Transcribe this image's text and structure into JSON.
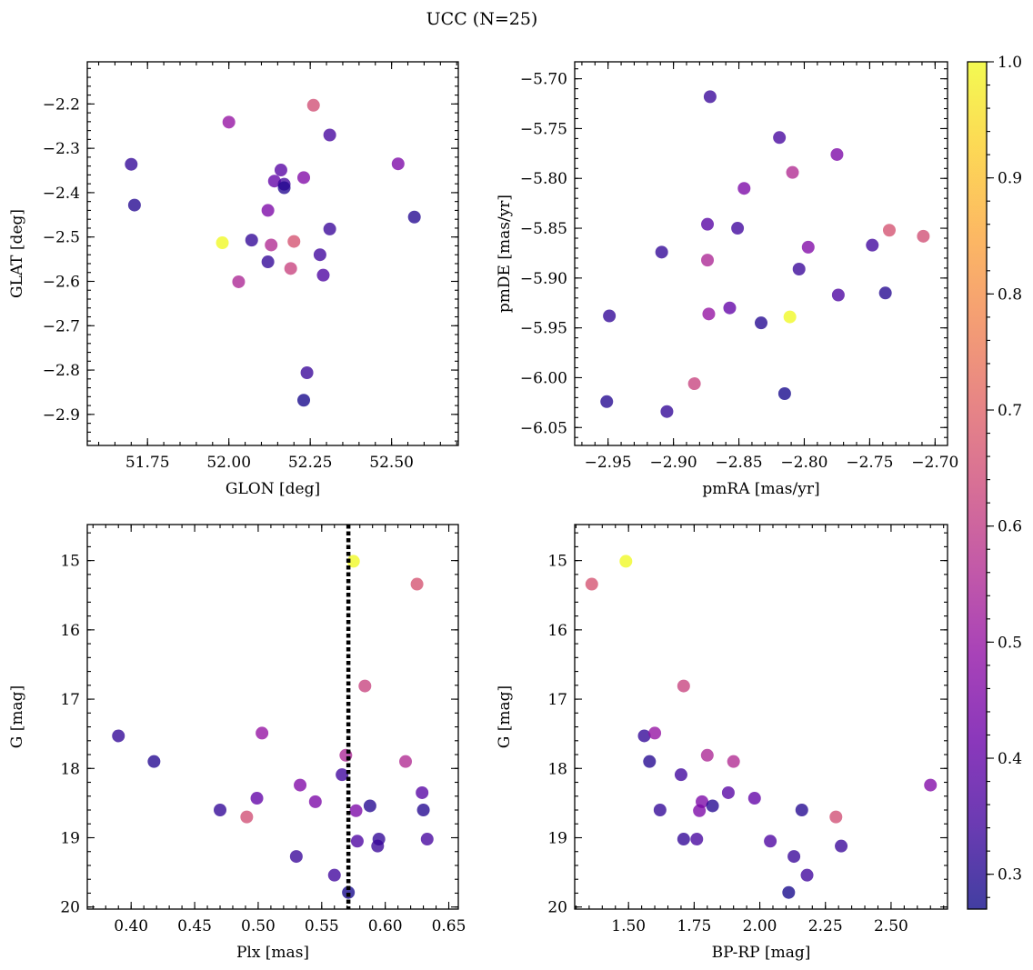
{
  "chart_data": {
    "title": "UCC (N=25)",
    "colorbar": {
      "colormap": "plasma",
      "range": [
        0.27,
        1.0
      ],
      "ticks": [
        0.3,
        0.4,
        0.5,
        0.6,
        0.7,
        0.8,
        0.9,
        1.0
      ]
    },
    "colormap_stops": [
      "#0d0887",
      "#41049d",
      "#6a00a8",
      "#8f0da4",
      "#b12a90",
      "#cc4778",
      "#e16462",
      "#f2844b",
      "#fca636",
      "#fcce25",
      "#f0f921"
    ],
    "marker_alpha": 0.78,
    "stars": [
      {
        "glon": 51.7,
        "glat": -2.336,
        "pmra": -2.949,
        "pmde": -5.938,
        "plx": 0.39,
        "g": 17.53,
        "bprp": 1.56,
        "p": 0.32
      },
      {
        "glon": 51.71,
        "glat": -2.428,
        "pmra": -2.951,
        "pmde": -6.024,
        "plx": 0.418,
        "g": 17.9,
        "bprp": 1.58,
        "p": 0.3
      },
      {
        "glon": 51.98,
        "glat": -2.513,
        "pmra": -2.811,
        "pmde": -5.939,
        "plx": 0.575,
        "g": 15.01,
        "bprp": 1.49,
        "p": 1.0
      },
      {
        "glon": 52.0,
        "glat": -2.241,
        "pmra": -2.873,
        "pmde": -5.936,
        "plx": 0.503,
        "g": 17.49,
        "bprp": 1.6,
        "p": 0.5
      },
      {
        "glon": 52.03,
        "glat": -2.601,
        "pmra": -2.874,
        "pmde": -5.882,
        "plx": 0.569,
        "g": 17.81,
        "bprp": 1.8,
        "p": 0.55
      },
      {
        "glon": 52.07,
        "glat": -2.507,
        "pmra": -2.909,
        "pmde": -5.874,
        "plx": 0.47,
        "g": 18.6,
        "bprp": 1.62,
        "p": 0.32
      },
      {
        "glon": 52.12,
        "glat": -2.556,
        "pmra": -2.905,
        "pmde": -6.034,
        "plx": 0.595,
        "g": 19.02,
        "bprp": 1.71,
        "p": 0.32
      },
      {
        "glon": 52.12,
        "glat": -2.44,
        "pmra": -2.846,
        "pmde": -5.81,
        "plx": 0.545,
        "g": 18.48,
        "bprp": 1.78,
        "p": 0.45
      },
      {
        "glon": 52.13,
        "glat": -2.518,
        "pmra": -2.809,
        "pmde": -5.794,
        "plx": 0.616,
        "g": 17.9,
        "bprp": 1.9,
        "p": 0.56
      },
      {
        "glon": 52.14,
        "glat": -2.374,
        "pmra": -2.857,
        "pmde": -5.93,
        "plx": 0.499,
        "g": 18.43,
        "bprp": 1.98,
        "p": 0.4
      },
      {
        "glon": 52.16,
        "glat": -2.349,
        "pmra": -2.874,
        "pmde": -5.846,
        "plx": 0.629,
        "g": 18.35,
        "bprp": 1.88,
        "p": 0.38
      },
      {
        "glon": 52.17,
        "glat": -2.381,
        "pmra": -2.851,
        "pmde": -5.85,
        "plx": 0.566,
        "g": 18.09,
        "bprp": 1.7,
        "p": 0.34
      },
      {
        "glon": 52.17,
        "glat": -2.389,
        "pmra": -2.833,
        "pmde": -5.945,
        "plx": 0.588,
        "g": 18.54,
        "bprp": 1.82,
        "p": 0.3
      },
      {
        "glon": 52.19,
        "glat": -2.571,
        "pmra": -2.884,
        "pmde": -6.006,
        "plx": 0.584,
        "g": 16.81,
        "bprp": 1.71,
        "p": 0.62
      },
      {
        "glon": 52.2,
        "glat": -2.51,
        "pmra": -2.735,
        "pmde": -5.852,
        "plx": 0.625,
        "g": 15.34,
        "bprp": 1.36,
        "p": 0.66
      },
      {
        "glon": 52.23,
        "glat": -2.366,
        "pmra": -2.797,
        "pmde": -5.869,
        "plx": 0.533,
        "g": 18.24,
        "bprp": 2.65,
        "p": 0.46
      },
      {
        "glon": 52.23,
        "glat": -2.868,
        "pmra": -2.815,
        "pmde": -6.016,
        "plx": 0.571,
        "g": 19.79,
        "bprp": 2.11,
        "p": 0.28
      },
      {
        "glon": 52.24,
        "glat": -2.806,
        "pmra": -2.804,
        "pmde": -5.891,
        "plx": 0.53,
        "g": 19.27,
        "bprp": 2.13,
        "p": 0.33
      },
      {
        "glon": 52.26,
        "glat": -2.203,
        "pmra": -2.709,
        "pmde": -5.858,
        "plx": 0.491,
        "g": 18.7,
        "bprp": 2.29,
        "p": 0.65
      },
      {
        "glon": 52.28,
        "glat": -2.54,
        "pmra": -2.748,
        "pmde": -5.867,
        "plx": 0.56,
        "g": 19.54,
        "bprp": 2.18,
        "p": 0.34
      },
      {
        "glon": 52.29,
        "glat": -2.586,
        "pmra": -2.774,
        "pmde": -5.917,
        "plx": 0.578,
        "g": 19.05,
        "bprp": 2.04,
        "p": 0.36
      },
      {
        "glon": 52.31,
        "glat": -2.27,
        "pmra": -2.819,
        "pmde": -5.759,
        "plx": 0.633,
        "g": 19.02,
        "bprp": 1.76,
        "p": 0.35
      },
      {
        "glon": 52.31,
        "glat": -2.482,
        "pmra": -2.872,
        "pmde": -5.718,
        "plx": 0.594,
        "g": 19.12,
        "bprp": 2.31,
        "p": 0.33
      },
      {
        "glon": 52.52,
        "glat": -2.335,
        "pmra": -2.775,
        "pmde": -5.776,
        "plx": 0.577,
        "g": 18.61,
        "bprp": 1.77,
        "p": 0.45
      },
      {
        "glon": 52.57,
        "glat": -2.455,
        "pmra": -2.738,
        "pmde": -5.915,
        "plx": 0.63,
        "g": 18.6,
        "bprp": 2.16,
        "p": 0.3
      }
    ],
    "panels": [
      {
        "type": "scatter",
        "x": "glon",
        "y": "glat",
        "xlabel": "GLON [deg]",
        "ylabel": "GLAT [deg]",
        "xlim": [
          51.565,
          52.705
        ],
        "ylim": [
          -2.97,
          -2.105
        ],
        "y_inverted": false,
        "xticks": [
          51.75,
          52.0,
          52.25,
          52.5
        ],
        "xtick_labels": [
          "51.75",
          "52.00",
          "52.25",
          "52.50"
        ],
        "yticks": [
          -2.2,
          -2.3,
          -2.4,
          -2.5,
          -2.6,
          -2.7,
          -2.8,
          -2.9
        ],
        "ytick_labels": [
          "−2.2",
          "−2.3",
          "−2.4",
          "−2.5",
          "−2.6",
          "−2.7",
          "−2.8",
          "−2.9"
        ],
        "xminor": 0.05,
        "yminor": 0.02,
        "vline": null
      },
      {
        "type": "scatter",
        "x": "pmra",
        "y": "pmde",
        "xlabel": "pmRA [mas/yr]",
        "ylabel": "pmDE [mas/yr]",
        "xlim": [
          -2.9755,
          -2.6905
        ],
        "ylim": [
          -6.068,
          -5.683
        ],
        "y_inverted": false,
        "xticks": [
          -2.95,
          -2.9,
          -2.85,
          -2.8,
          -2.75,
          -2.7
        ],
        "xtick_labels": [
          "−2.95",
          "−2.90",
          "−2.85",
          "−2.80",
          "−2.75",
          "−2.70"
        ],
        "yticks": [
          -5.7,
          -5.75,
          -5.8,
          -5.85,
          -5.9,
          -5.95,
          -6.0,
          -6.05
        ],
        "ytick_labels": [
          "−5.70",
          "−5.75",
          "−5.80",
          "−5.85",
          "−5.90",
          "−5.95",
          "−6.00",
          "−6.05"
        ],
        "xminor": 0.01,
        "yminor": 0.01,
        "vline": null
      },
      {
        "type": "scatter",
        "x": "plx",
        "y": "g",
        "xlabel": "Plx [mas]",
        "ylabel": "G [mag]",
        "xlim": [
          0.3655,
          0.6575
        ],
        "ylim": [
          14.48,
          20.03
        ],
        "y_inverted": true,
        "xticks": [
          0.4,
          0.45,
          0.5,
          0.55,
          0.6,
          0.65
        ],
        "xtick_labels": [
          "0.40",
          "0.45",
          "0.50",
          "0.55",
          "0.60",
          "0.65"
        ],
        "yticks": [
          15,
          16,
          17,
          18,
          19,
          20
        ],
        "ytick_labels": [
          "15",
          "16",
          "17",
          "18",
          "19",
          "20"
        ],
        "xminor": 0.01,
        "yminor": 0.2,
        "vline": 0.571
      },
      {
        "type": "scatter",
        "x": "bprp",
        "y": "g",
        "xlabel": "BP-RP [mag]",
        "ylabel": "G [mag]",
        "xlim": [
          1.295,
          2.715
        ],
        "ylim": [
          14.48,
          20.03
        ],
        "y_inverted": true,
        "xticks": [
          1.5,
          1.75,
          2.0,
          2.25,
          2.5
        ],
        "xtick_labels": [
          "1.50",
          "1.75",
          "2.00",
          "2.25",
          "2.50"
        ],
        "yticks": [
          15,
          16,
          17,
          18,
          19,
          20
        ],
        "ytick_labels": [
          "15",
          "16",
          "17",
          "18",
          "19",
          "20"
        ],
        "xminor": 0.05,
        "yminor": 0.2,
        "vline": null
      }
    ]
  }
}
